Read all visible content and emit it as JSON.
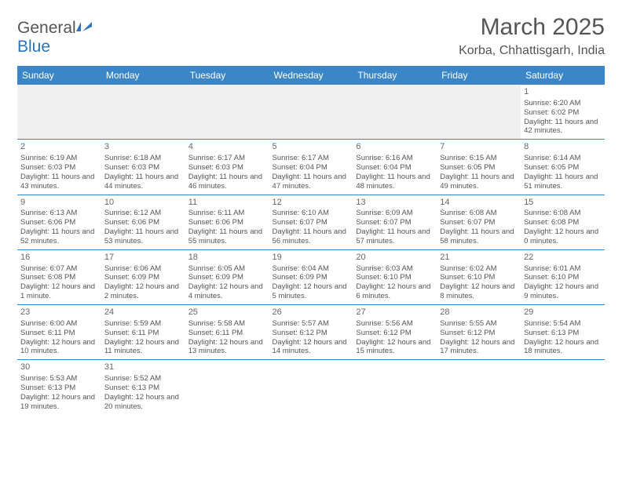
{
  "logo": {
    "word1": "General",
    "word2": "Blue"
  },
  "title": "March 2025",
  "location": "Korba, Chhattisgarh, India",
  "colors": {
    "header_bg": "#3b86c7",
    "header_fg": "#ffffff",
    "border": "#3b86c7",
    "empty_bg": "#f0f0f0",
    "text": "#555"
  },
  "weekdays": [
    "Sunday",
    "Monday",
    "Tuesday",
    "Wednesday",
    "Thursday",
    "Friday",
    "Saturday"
  ],
  "weeks": [
    [
      null,
      null,
      null,
      null,
      null,
      null,
      {
        "n": "1",
        "sr": "Sunrise: 6:20 AM",
        "ss": "Sunset: 6:02 PM",
        "dl": "Daylight: 11 hours and 42 minutes."
      }
    ],
    [
      {
        "n": "2",
        "sr": "Sunrise: 6:19 AM",
        "ss": "Sunset: 6:03 PM",
        "dl": "Daylight: 11 hours and 43 minutes."
      },
      {
        "n": "3",
        "sr": "Sunrise: 6:18 AM",
        "ss": "Sunset: 6:03 PM",
        "dl": "Daylight: 11 hours and 44 minutes."
      },
      {
        "n": "4",
        "sr": "Sunrise: 6:17 AM",
        "ss": "Sunset: 6:03 PM",
        "dl": "Daylight: 11 hours and 46 minutes."
      },
      {
        "n": "5",
        "sr": "Sunrise: 6:17 AM",
        "ss": "Sunset: 6:04 PM",
        "dl": "Daylight: 11 hours and 47 minutes."
      },
      {
        "n": "6",
        "sr": "Sunrise: 6:16 AM",
        "ss": "Sunset: 6:04 PM",
        "dl": "Daylight: 11 hours and 48 minutes."
      },
      {
        "n": "7",
        "sr": "Sunrise: 6:15 AM",
        "ss": "Sunset: 6:05 PM",
        "dl": "Daylight: 11 hours and 49 minutes."
      },
      {
        "n": "8",
        "sr": "Sunrise: 6:14 AM",
        "ss": "Sunset: 6:05 PM",
        "dl": "Daylight: 11 hours and 51 minutes."
      }
    ],
    [
      {
        "n": "9",
        "sr": "Sunrise: 6:13 AM",
        "ss": "Sunset: 6:06 PM",
        "dl": "Daylight: 11 hours and 52 minutes."
      },
      {
        "n": "10",
        "sr": "Sunrise: 6:12 AM",
        "ss": "Sunset: 6:06 PM",
        "dl": "Daylight: 11 hours and 53 minutes."
      },
      {
        "n": "11",
        "sr": "Sunrise: 6:11 AM",
        "ss": "Sunset: 6:06 PM",
        "dl": "Daylight: 11 hours and 55 minutes."
      },
      {
        "n": "12",
        "sr": "Sunrise: 6:10 AM",
        "ss": "Sunset: 6:07 PM",
        "dl": "Daylight: 11 hours and 56 minutes."
      },
      {
        "n": "13",
        "sr": "Sunrise: 6:09 AM",
        "ss": "Sunset: 6:07 PM",
        "dl": "Daylight: 11 hours and 57 minutes."
      },
      {
        "n": "14",
        "sr": "Sunrise: 6:08 AM",
        "ss": "Sunset: 6:07 PM",
        "dl": "Daylight: 11 hours and 58 minutes."
      },
      {
        "n": "15",
        "sr": "Sunrise: 6:08 AM",
        "ss": "Sunset: 6:08 PM",
        "dl": "Daylight: 12 hours and 0 minutes."
      }
    ],
    [
      {
        "n": "16",
        "sr": "Sunrise: 6:07 AM",
        "ss": "Sunset: 6:08 PM",
        "dl": "Daylight: 12 hours and 1 minute."
      },
      {
        "n": "17",
        "sr": "Sunrise: 6:06 AM",
        "ss": "Sunset: 6:09 PM",
        "dl": "Daylight: 12 hours and 2 minutes."
      },
      {
        "n": "18",
        "sr": "Sunrise: 6:05 AM",
        "ss": "Sunset: 6:09 PM",
        "dl": "Daylight: 12 hours and 4 minutes."
      },
      {
        "n": "19",
        "sr": "Sunrise: 6:04 AM",
        "ss": "Sunset: 6:09 PM",
        "dl": "Daylight: 12 hours and 5 minutes."
      },
      {
        "n": "20",
        "sr": "Sunrise: 6:03 AM",
        "ss": "Sunset: 6:10 PM",
        "dl": "Daylight: 12 hours and 6 minutes."
      },
      {
        "n": "21",
        "sr": "Sunrise: 6:02 AM",
        "ss": "Sunset: 6:10 PM",
        "dl": "Daylight: 12 hours and 8 minutes."
      },
      {
        "n": "22",
        "sr": "Sunrise: 6:01 AM",
        "ss": "Sunset: 6:10 PM",
        "dl": "Daylight: 12 hours and 9 minutes."
      }
    ],
    [
      {
        "n": "23",
        "sr": "Sunrise: 6:00 AM",
        "ss": "Sunset: 6:11 PM",
        "dl": "Daylight: 12 hours and 10 minutes."
      },
      {
        "n": "24",
        "sr": "Sunrise: 5:59 AM",
        "ss": "Sunset: 6:11 PM",
        "dl": "Daylight: 12 hours and 11 minutes."
      },
      {
        "n": "25",
        "sr": "Sunrise: 5:58 AM",
        "ss": "Sunset: 6:11 PM",
        "dl": "Daylight: 12 hours and 13 minutes."
      },
      {
        "n": "26",
        "sr": "Sunrise: 5:57 AM",
        "ss": "Sunset: 6:12 PM",
        "dl": "Daylight: 12 hours and 14 minutes."
      },
      {
        "n": "27",
        "sr": "Sunrise: 5:56 AM",
        "ss": "Sunset: 6:12 PM",
        "dl": "Daylight: 12 hours and 15 minutes."
      },
      {
        "n": "28",
        "sr": "Sunrise: 5:55 AM",
        "ss": "Sunset: 6:12 PM",
        "dl": "Daylight: 12 hours and 17 minutes."
      },
      {
        "n": "29",
        "sr": "Sunrise: 5:54 AM",
        "ss": "Sunset: 6:13 PM",
        "dl": "Daylight: 12 hours and 18 minutes."
      }
    ],
    [
      {
        "n": "30",
        "sr": "Sunrise: 5:53 AM",
        "ss": "Sunset: 6:13 PM",
        "dl": "Daylight: 12 hours and 19 minutes."
      },
      {
        "n": "31",
        "sr": "Sunrise: 5:52 AM",
        "ss": "Sunset: 6:13 PM",
        "dl": "Daylight: 12 hours and 20 minutes."
      },
      null,
      null,
      null,
      null,
      null
    ]
  ]
}
